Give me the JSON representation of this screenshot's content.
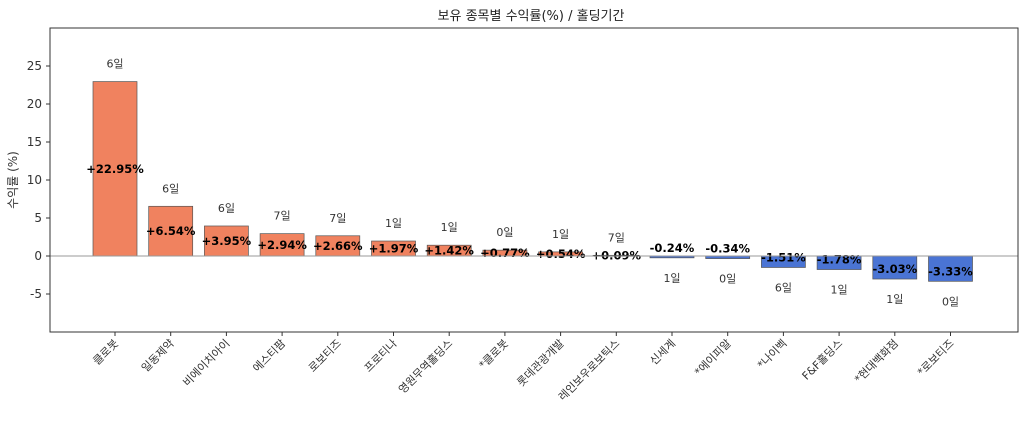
{
  "chart_data": {
    "type": "bar",
    "title": "보유 종목별 수익률(%) / 홀딩기간",
    "xlabel": "",
    "ylabel": "수익률 (%)",
    "ylim": [
      -10,
      30
    ],
    "yticks": [
      -5,
      0,
      5,
      10,
      15,
      20,
      25
    ],
    "ytick_labels": [
      "-5",
      "0",
      "5",
      "10",
      "15",
      "20",
      "25"
    ],
    "grid": false,
    "legend": "none",
    "categories": [
      "클로봇",
      "일동제약",
      "비에이치아이",
      "에스티팜",
      "로보티즈",
      "프로티나",
      "영원무역홀딩스",
      "*클로봇",
      "롯데관광개발",
      "레인보우로보틱스",
      "신세계",
      "*에이피알",
      "*나이벡",
      "F&F홀딩스",
      "*현대백화점",
      "*로보티즈"
    ],
    "values": [
      22.95,
      6.54,
      3.95,
      2.94,
      2.66,
      1.97,
      1.42,
      0.77,
      0.54,
      0.09,
      -0.24,
      -0.34,
      -1.51,
      -1.78,
      -3.03,
      -3.33
    ],
    "value_labels": [
      "+22.95%",
      "+6.54%",
      "+3.95%",
      "+2.94%",
      "+2.66%",
      "+1.97%",
      "+1.42%",
      "+0.77%",
      "+0.54%",
      "+0.09%",
      "-0.24%",
      "-0.34%",
      "-1.51%",
      "-1.78%",
      "-3.03%",
      "-3.33%"
    ],
    "holding_labels": [
      "6일",
      "6일",
      "6일",
      "7일",
      "7일",
      "1일",
      "1일",
      "0일",
      "1일",
      "7일",
      "1일",
      "0일",
      "6일",
      "1일",
      "1일",
      "0일"
    ],
    "colors": {
      "positive": "#f0825f",
      "negative": "#4a74d4",
      "edge": "#555555",
      "zero_line": "#999999"
    }
  }
}
